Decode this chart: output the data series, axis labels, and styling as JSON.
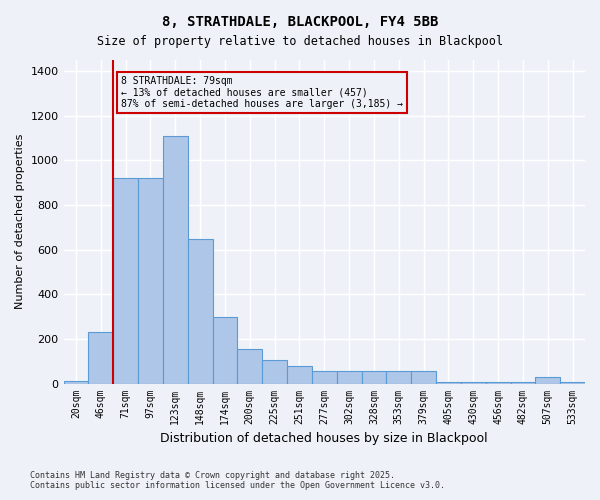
{
  "title_line1": "8, STRATHDALE, BLACKPOOL, FY4 5BB",
  "title_line2": "Size of property relative to detached houses in Blackpool",
  "xlabel": "Distribution of detached houses by size in Blackpool",
  "ylabel": "Number of detached properties",
  "property_size": 79,
  "property_label": "8 STRATHDALE: 79sqm",
  "annotation_line1": "8 STRATHDALE: 79sqm",
  "annotation_line2": "← 13% of detached houses are smaller (457)",
  "annotation_line3": "87% of semi-detached houses are larger (3,185) →",
  "categories": [
    "20sqm",
    "46sqm",
    "71sqm",
    "97sqm",
    "123sqm",
    "148sqm",
    "174sqm",
    "200sqm",
    "225sqm",
    "251sqm",
    "277sqm",
    "302sqm",
    "328sqm",
    "353sqm",
    "379sqm",
    "405sqm",
    "430sqm",
    "456sqm",
    "482sqm",
    "507sqm",
    "533sqm"
  ],
  "values": [
    10,
    230,
    920,
    920,
    1110,
    650,
    300,
    155,
    105,
    80,
    55,
    55,
    55,
    55,
    55,
    5,
    5,
    5,
    5,
    30,
    5
  ],
  "bar_color": "#aec6e8",
  "bar_edge_color": "#5b9bd5",
  "bg_color": "#eef2f8",
  "grid_color": "#ffffff",
  "vline_color": "#cc0000",
  "vline_x": 1.5,
  "annotation_box_color": "#cc0000",
  "footer_line1": "Contains HM Land Registry data © Crown copyright and database right 2025.",
  "footer_line2": "Contains public sector information licensed under the Open Government Licence v3.0.",
  "ylim": [
    0,
    1450
  ],
  "yticks": [
    0,
    200,
    400,
    600,
    800,
    1000,
    1200,
    1400
  ]
}
